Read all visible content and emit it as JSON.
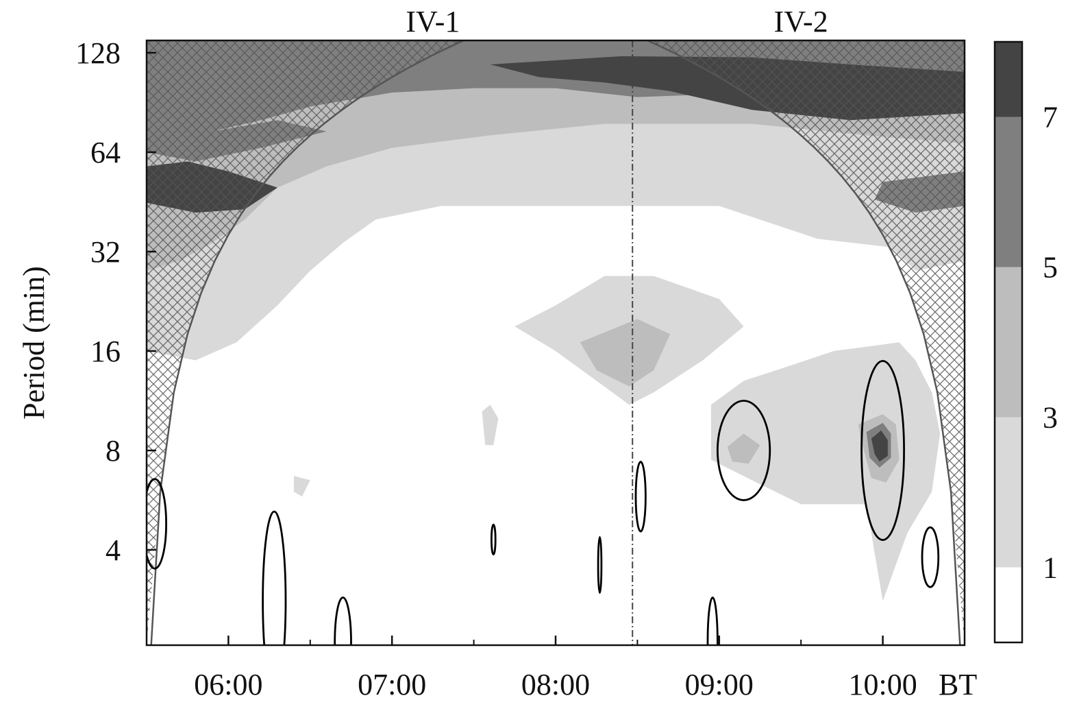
{
  "chart_data": {
    "type": "heatmap",
    "title": "",
    "xlabel": "",
    "ylabel": "Period (min)",
    "x_unit_label": "BT",
    "x_range_hours": [
      5.5,
      10.5
    ],
    "x_ticks": [
      {
        "value": 6,
        "label": "06:00"
      },
      {
        "value": 7,
        "label": "07:00"
      },
      {
        "value": 8,
        "label": "08:00"
      },
      {
        "value": 9,
        "label": "09:00"
      },
      {
        "value": 10,
        "label": "10:00"
      }
    ],
    "x_minor_ticks": [
      5.5,
      6.5,
      7.5,
      8.5,
      9.5,
      10.5
    ],
    "y_scale": "log2",
    "y_range_min": [
      2,
      140
    ],
    "y_ticks": [
      {
        "value": 4,
        "label": "4"
      },
      {
        "value": 8,
        "label": "8"
      },
      {
        "value": 16,
        "label": "16"
      },
      {
        "value": 32,
        "label": "32"
      },
      {
        "value": 64,
        "label": "64"
      },
      {
        "value": 128,
        "label": "128"
      }
    ],
    "divider_time": 8.47,
    "segments": [
      {
        "label": "IV-1",
        "center_time": 7.25
      },
      {
        "label": "IV-2",
        "center_time": 9.5
      }
    ],
    "colorbar": {
      "levels": [
        {
          "from": 0,
          "to": 1,
          "color": "#ffffff"
        },
        {
          "from": 1,
          "to": 3,
          "color": "#d9d9d9"
        },
        {
          "from": 3,
          "to": 5,
          "color": "#bdbdbd"
        },
        {
          "from": 5,
          "to": 7,
          "color": "#7f7f7f"
        },
        {
          "from": 7,
          "to": 8,
          "color": "#444444"
        }
      ],
      "tick_labels": [
        "1",
        "3",
        "5",
        "7"
      ]
    },
    "grid": false,
    "cone_of_influence": "cross-hatched",
    "significance_contours": [
      {
        "time": 5.55,
        "period": 4.8
      },
      {
        "time": 6.28,
        "period": 2.8
      },
      {
        "time": 6.7,
        "period": 2.1
      },
      {
        "time": 7.62,
        "period": 4.3
      },
      {
        "time": 8.27,
        "period": 3.6
      },
      {
        "time": 8.52,
        "period": 5.8
      },
      {
        "time": 8.96,
        "period": 2.1
      },
      {
        "time": 9.15,
        "period": 8.0
      },
      {
        "time": 10.0,
        "period": 8.0
      },
      {
        "time": 10.29,
        "period": 3.8
      }
    ]
  }
}
